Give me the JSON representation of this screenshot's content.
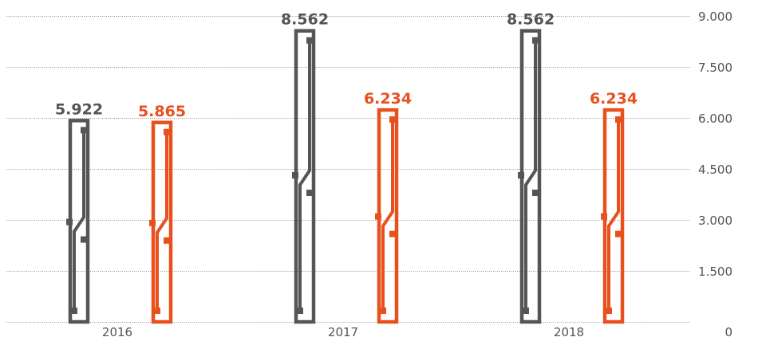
{
  "chart_data": {
    "type": "bar",
    "title": "",
    "xlabel": "",
    "ylabel": "",
    "categories": [
      "2016",
      "2017",
      "2018"
    ],
    "ylim": [
      0,
      9000
    ],
    "yticks": [
      {
        "value": 0,
        "label": "0"
      },
      {
        "value": 1500,
        "label": "1.500"
      },
      {
        "value": 3000,
        "label": "3.000"
      },
      {
        "value": 4500,
        "label": "4.500"
      },
      {
        "value": 6000,
        "label": "6.000"
      },
      {
        "value": 7500,
        "label": "7.500"
      },
      {
        "value": 9000,
        "label": "9.000"
      }
    ],
    "grid": true,
    "y_axis_position": "right",
    "series": [
      {
        "color": "#555555",
        "values": [
          5922,
          8562,
          8562
        ],
        "value_labels": [
          "5.922",
          "8.562",
          "8.562"
        ]
      },
      {
        "color": "#e8501e",
        "values": [
          5865,
          6234,
          6234
        ],
        "value_labels": [
          "5.865",
          "6.234",
          "6.234"
        ]
      }
    ],
    "bar_style": "outlined-circuit"
  }
}
